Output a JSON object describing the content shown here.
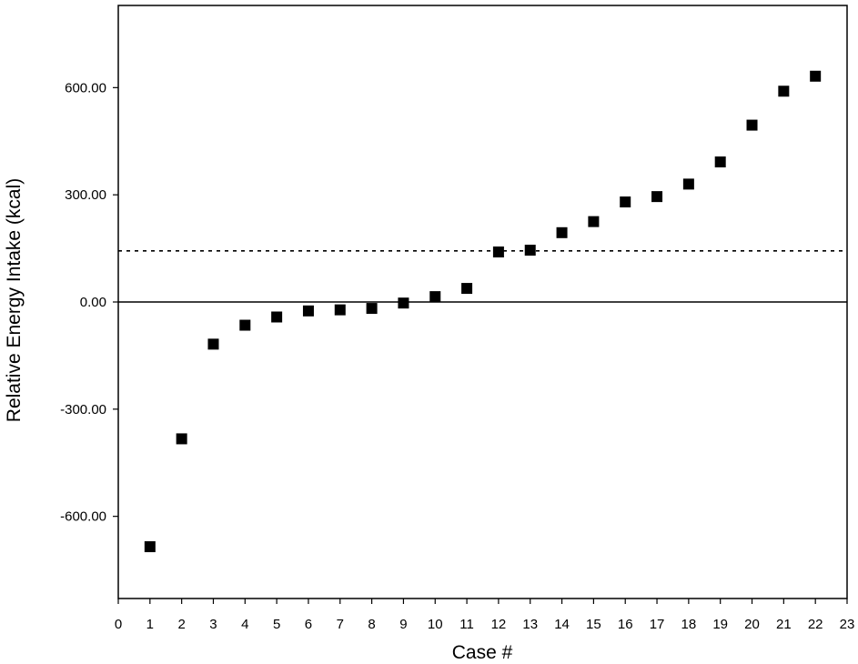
{
  "chart_data": {
    "type": "scatter",
    "title": "",
    "xlabel": "Case #",
    "ylabel": "Relative Energy Intake (kcal)",
    "xlim": [
      0,
      23
    ],
    "ylim": [
      -830,
      830
    ],
    "x_ticks": [
      0,
      1,
      2,
      3,
      4,
      5,
      6,
      7,
      8,
      9,
      10,
      11,
      12,
      13,
      14,
      15,
      16,
      17,
      18,
      19,
      20,
      21,
      22,
      23
    ],
    "x_tick_labels": [
      "0",
      "1",
      "2",
      "3",
      "4",
      "5",
      "6",
      "7",
      "8",
      "9",
      "10",
      "11",
      "12",
      "13",
      "14",
      "15",
      "16",
      "17",
      "18",
      "19",
      "20",
      "21",
      "22",
      "23"
    ],
    "y_ticks": [
      -600,
      -300,
      0,
      300,
      600
    ],
    "y_tick_labels": [
      "-600.00",
      "-300.00",
      "0.00",
      "300.00",
      "600.00"
    ],
    "grid": false,
    "legend": "none",
    "marker": "square",
    "marker_color": "#000000",
    "series": [
      {
        "x": [
          1,
          2,
          3,
          4,
          5,
          6,
          7,
          8,
          9,
          10,
          11,
          12,
          13,
          14,
          15,
          16,
          17,
          18,
          19,
          20,
          21,
          22
        ],
        "y": [
          -685,
          -383,
          -118,
          -65,
          -42,
          -25,
          -22,
          -18,
          -3,
          15,
          38,
          140,
          145,
          194,
          225,
          280,
          295,
          330,
          392,
          495,
          590,
          632
        ]
      }
    ],
    "reference_lines": [
      {
        "y": 0,
        "style": "solid",
        "color": "#000000"
      },
      {
        "y": 143,
        "style": "dotted",
        "color": "#000000"
      }
    ]
  }
}
